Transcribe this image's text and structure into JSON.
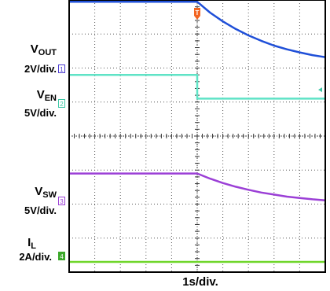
{
  "chart_data": {
    "type": "line",
    "x_scale_label": "1s/div.",
    "x_divisions": 10,
    "y_divisions": 8,
    "grid": true,
    "channels": [
      {
        "name": "V",
        "subscript": "OUT",
        "scale": "2V/div.",
        "marker": "1",
        "color": "#1f4fd8",
        "marker_color": "#4a3ad0",
        "x": [
          0,
          1,
          2,
          3,
          4,
          5,
          5.5,
          6,
          6.5,
          7,
          7.5,
          8,
          8.5,
          9,
          9.5,
          10
        ],
        "y": [
          7.95,
          7.95,
          7.95,
          7.95,
          7.95,
          7.95,
          7.63,
          7.37,
          7.15,
          6.96,
          6.8,
          6.66,
          6.55,
          6.46,
          6.38,
          6.32
        ]
      },
      {
        "name": "V",
        "subscript": "EN",
        "scale": "5V/div.",
        "marker": "2",
        "color": "#5fe3c6",
        "marker_color": "#3cc7a5",
        "x": [
          0,
          5,
          5,
          10
        ],
        "y": [
          5.8,
          5.8,
          5.1,
          5.1
        ]
      },
      {
        "name": "V",
        "subscript": "SW",
        "scale": "5V/div.",
        "marker": "3",
        "color": "#9b3fd6",
        "marker_color": "#9b3fd6",
        "x": [
          0,
          1,
          2,
          3,
          4,
          5,
          5.5,
          6,
          6.5,
          7,
          7.5,
          8,
          8.5,
          9,
          9.5,
          10
        ],
        "y": [
          2.9,
          2.9,
          2.9,
          2.9,
          2.9,
          2.9,
          2.75,
          2.62,
          2.51,
          2.42,
          2.34,
          2.28,
          2.22,
          2.18,
          2.14,
          2.11
        ]
      },
      {
        "name": "I",
        "subscript": "L",
        "scale": "2A/div.",
        "marker": "4",
        "color": "#6fd62a",
        "marker_color": "#3ca82a",
        "x": [
          0,
          10
        ],
        "y": [
          0.3,
          0.3
        ]
      }
    ],
    "trigger_marker": "T"
  }
}
